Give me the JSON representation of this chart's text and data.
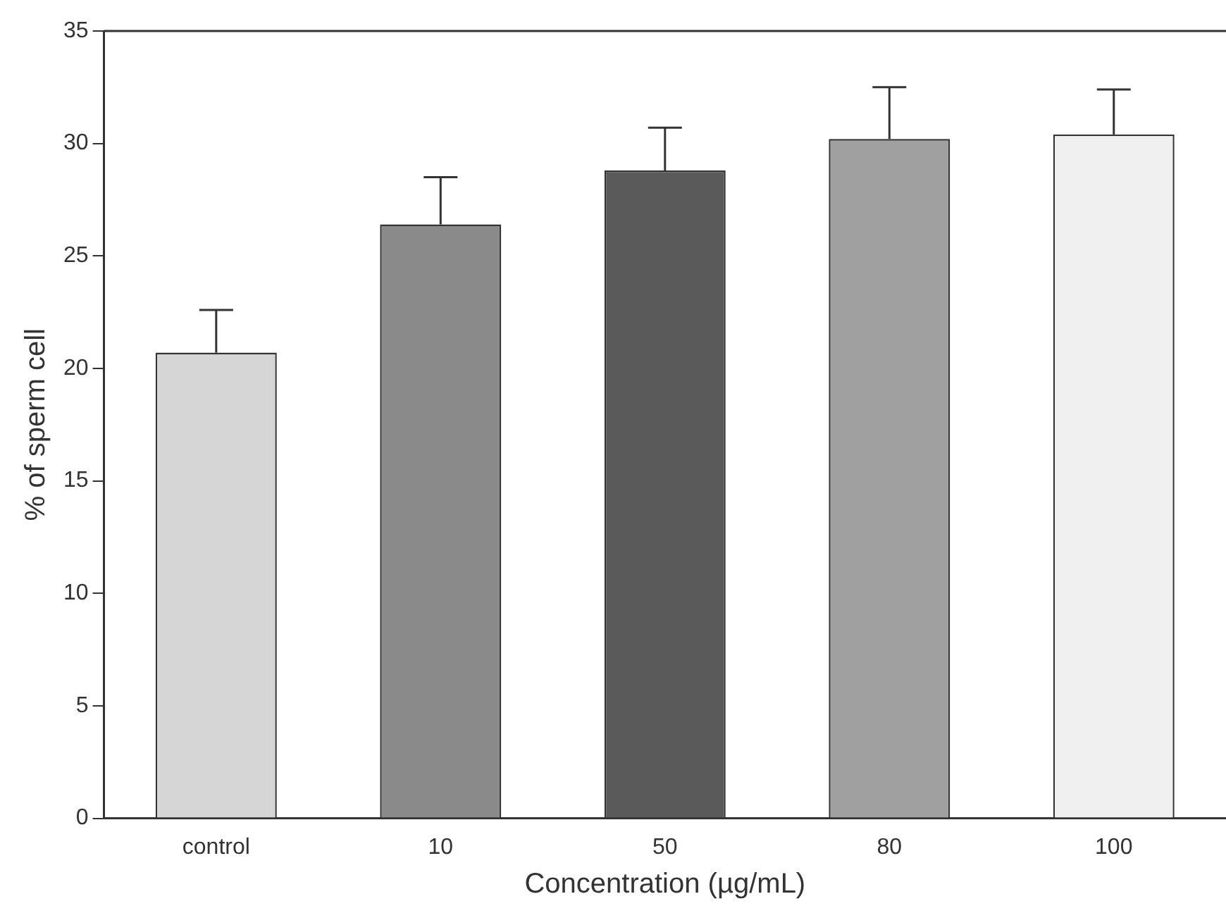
{
  "chart_data": {
    "type": "bar",
    "xlabel": "Concentration (µg/mL)",
    "ylabel": "% of sperm cell",
    "categories": [
      "control",
      "10",
      "50",
      "80",
      "100"
    ],
    "values": [
      20.7,
      26.4,
      28.8,
      30.2,
      30.4
    ],
    "errors": [
      [
        20.7,
        22.6
      ],
      [
        26.4,
        28.5
      ],
      [
        28.8,
        30.7
      ],
      [
        30.2,
        32.5
      ],
      [
        30.4,
        32.4
      ]
    ],
    "colors": [
      "#d6d6d6",
      "#8a8a8a",
      "#5a5a5a",
      "#a0a0a0",
      "#f0f0f0"
    ],
    "ylim": [
      0,
      35
    ],
    "yticks": [
      0,
      5,
      10,
      15,
      20,
      25,
      30,
      35
    ],
    "grid": false,
    "legend": false
  }
}
